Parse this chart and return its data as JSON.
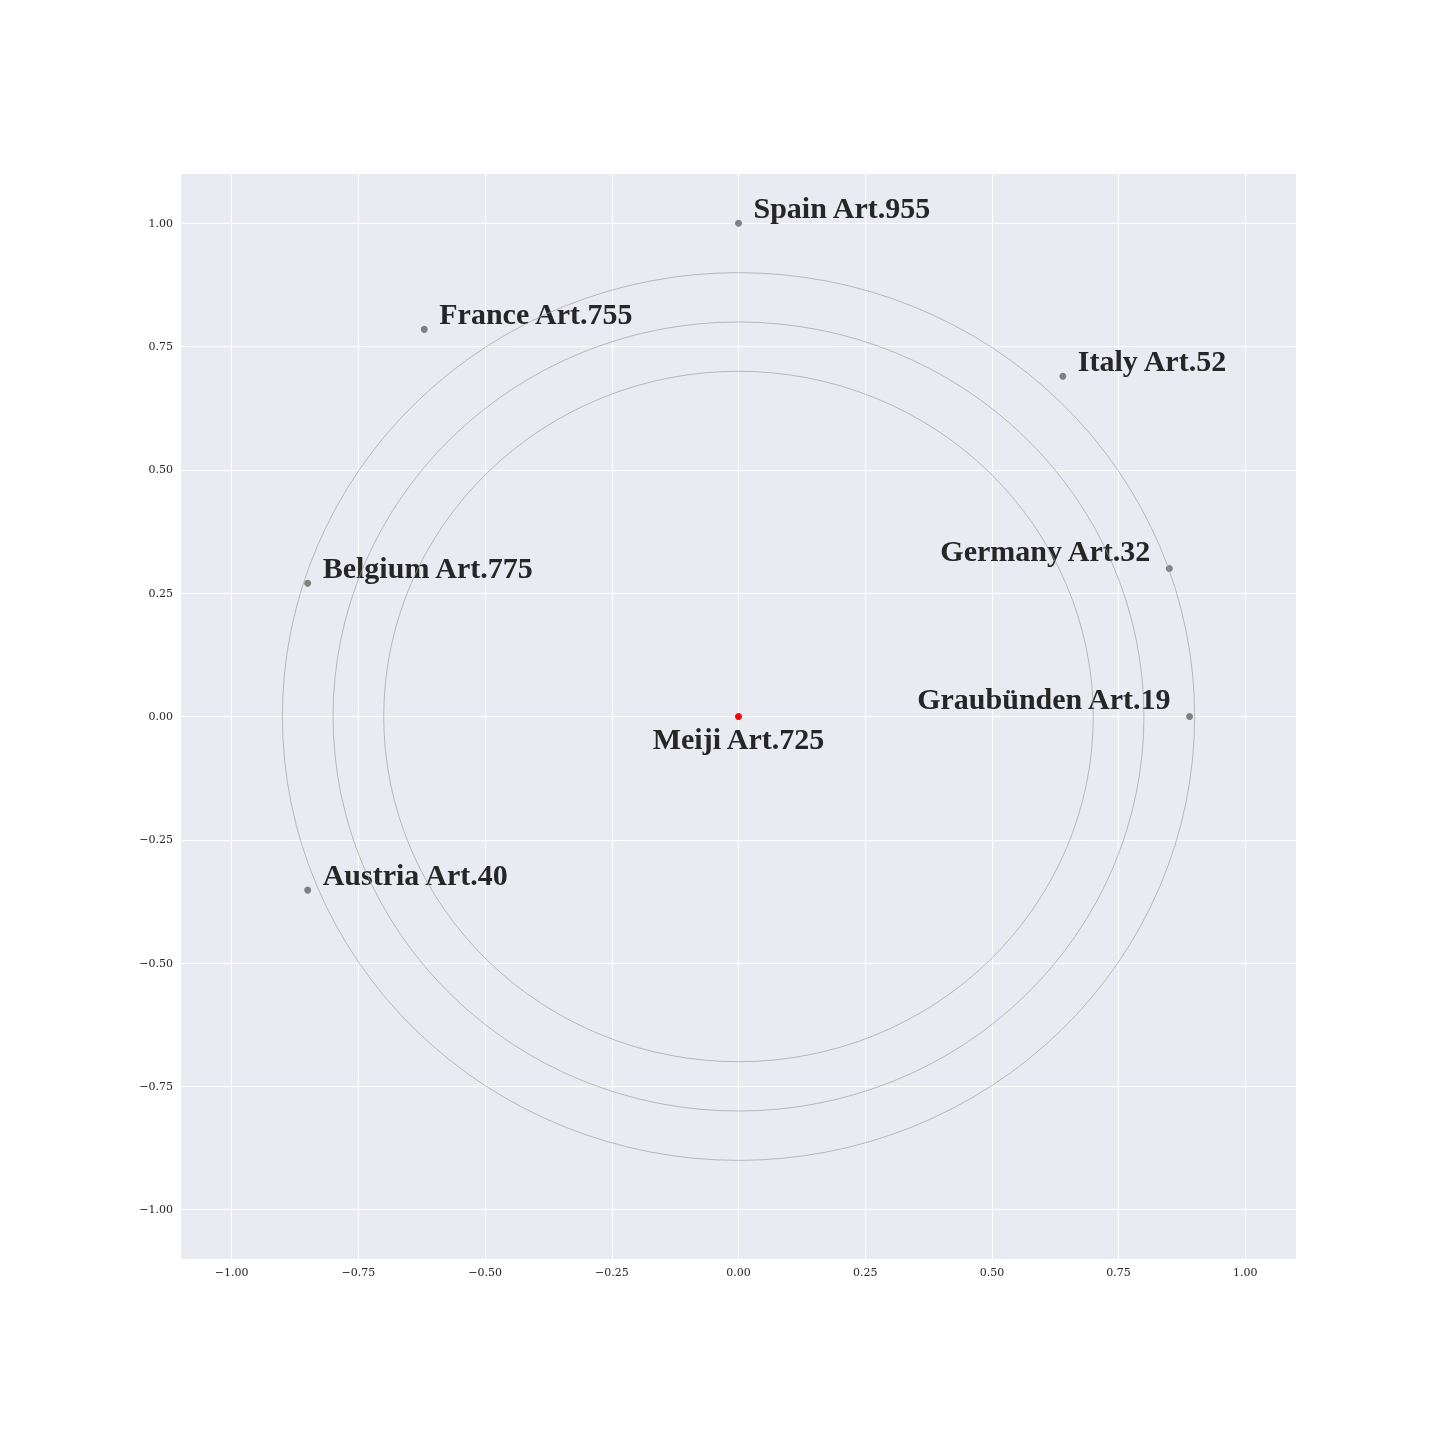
{
  "chart_data": {
    "type": "scatter",
    "marker": "circle",
    "grid": true,
    "xlim": [
      -1.1,
      1.1
    ],
    "ylim": [
      -1.1,
      1.1
    ],
    "xticks": [
      {
        "value": -1,
        "label": "−1.00"
      },
      {
        "value": -0.75,
        "label": "−0.75"
      },
      {
        "value": -0.5,
        "label": "−0.50"
      },
      {
        "value": -0.25,
        "label": "−0.25"
      },
      {
        "value": 0,
        "label": "0.00"
      },
      {
        "value": 0.25,
        "label": "0.25"
      },
      {
        "value": 0.5,
        "label": "0.50"
      },
      {
        "value": 0.75,
        "label": "0.75"
      },
      {
        "value": 1,
        "label": "1.00"
      }
    ],
    "yticks": [
      {
        "value": -1,
        "label": "−1.00"
      },
      {
        "value": -0.75,
        "label": "−0.75"
      },
      {
        "value": -0.5,
        "label": "−0.50"
      },
      {
        "value": -0.25,
        "label": "−0.25"
      },
      {
        "value": 0,
        "label": "0.00"
      },
      {
        "value": 0.25,
        "label": "0.25"
      },
      {
        "value": 0.5,
        "label": "0.50"
      },
      {
        "value": 0.75,
        "label": "0.75"
      },
      {
        "value": 1,
        "label": "1.00"
      }
    ],
    "series": [
      {
        "color": "#808080",
        "x": [
          0,
          -0.62,
          0.64,
          -0.85,
          0.85,
          0.89,
          -0.85
        ],
        "values": [
          1.0,
          0.785,
          0.69,
          0.27,
          0.3,
          0,
          -0.352
        ]
      },
      {
        "color": "#ff0000",
        "x": [
          0
        ],
        "values": [
          0
        ]
      }
    ],
    "annotations": [
      {
        "text": "Spain Art.955",
        "x": 0,
        "y": 1.0
      },
      {
        "text": "France Art.755",
        "x": -0.62,
        "y": 0.785
      },
      {
        "text": "Italy Art.52",
        "x": 0.64,
        "y": 0.69
      },
      {
        "text": "Belgium Art.775",
        "x": -0.85,
        "y": 0.27
      },
      {
        "text": "Germany Art.32",
        "x": 0.85,
        "y": 0.3
      },
      {
        "text": "Graubünden Art.19",
        "x": 0.89,
        "y": 0
      },
      {
        "text": "Austria Art.40",
        "x": -0.85,
        "y": -0.352
      },
      {
        "text": "Meiji Art.725",
        "x": 0,
        "y": 0
      }
    ]
  }
}
